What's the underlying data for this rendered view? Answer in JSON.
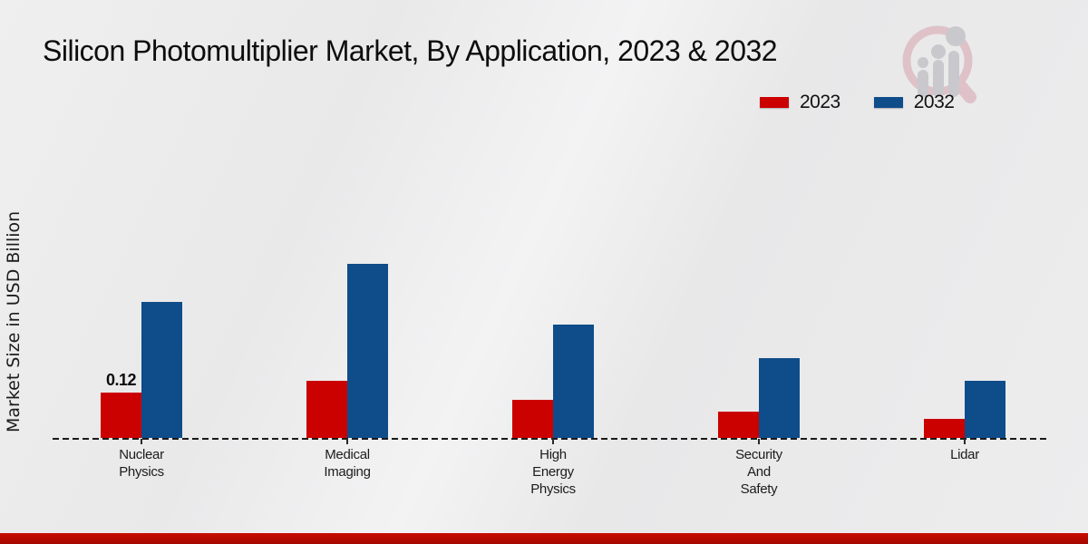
{
  "page": {
    "title": "Silicon Photomultiplier Market, By Application, 2023 & 2032",
    "y_axis_label": "Market Size in USD Billion"
  },
  "legend": [
    {
      "label": "2023",
      "color": "#cb0100"
    },
    {
      "label": "2032",
      "color": "#0f4c8a"
    }
  ],
  "chart_data": {
    "type": "bar",
    "title": "Silicon Photomultiplier Market, By Application, 2023 & 2032",
    "xlabel": "",
    "ylabel": "Market Size in USD Billion",
    "unit": "USD Billion",
    "categories": [
      "Nuclear Physics",
      "Medical Imaging",
      "High Energy Physics",
      "Security And Safety",
      "Lidar"
    ],
    "category_label_lines": [
      [
        "Nuclear",
        "Physics"
      ],
      [
        "Medical",
        "Imaging"
      ],
      [
        "High",
        "Energy",
        "Physics"
      ],
      [
        "Security",
        "And",
        "Safety"
      ],
      [
        "Lidar"
      ]
    ],
    "series": [
      {
        "name": "2023",
        "color": "#cb0100",
        "values": [
          0.12,
          0.15,
          0.1,
          0.07,
          0.05
        ],
        "value_labels": [
          "0.12",
          "",
          "",
          "",
          ""
        ]
      },
      {
        "name": "2032",
        "color": "#0f4c8a",
        "values": [
          0.36,
          0.46,
          0.3,
          0.21,
          0.15
        ],
        "value_labels": [
          "",
          "",
          "",
          "",
          ""
        ]
      }
    ],
    "ylim": [
      0,
      0.5
    ],
    "grid": false,
    "y_ticks_shown": false,
    "baseline_style": "dashed",
    "legend_position": "top-right"
  },
  "branding": {
    "logo_name": "market-research-future-logo",
    "bottom_bar_color": "#bb0a00"
  }
}
